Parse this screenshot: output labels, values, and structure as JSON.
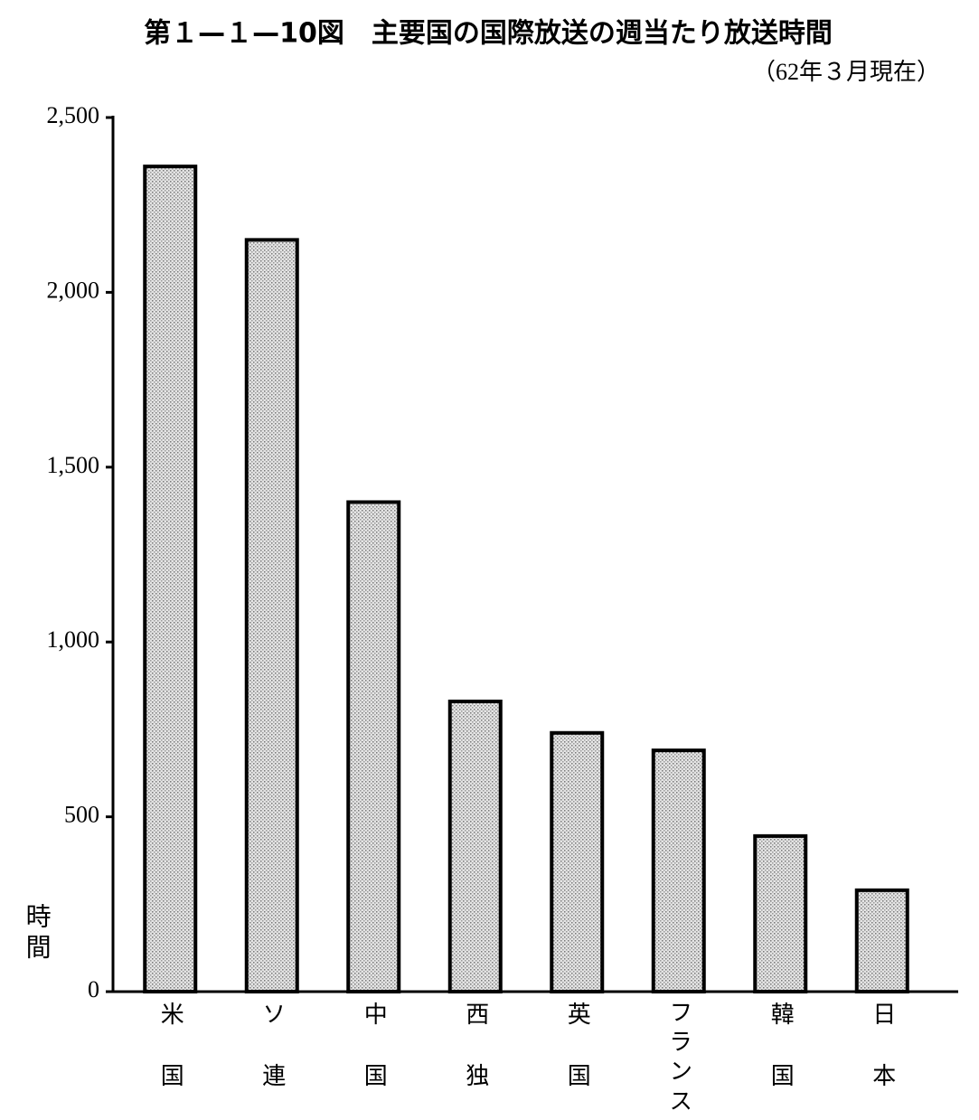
{
  "chart_data": {
    "type": "bar",
    "title": "第１—１—10図　主要国の国際放送の週当たり放送時間",
    "subtitle": "（62年３月現在）",
    "y_label": "時間",
    "categories": [
      "米国",
      "ソ連",
      "中国",
      "西独",
      "英国",
      "フランス",
      "韓国",
      "日本"
    ],
    "values": [
      2360,
      2150,
      1400,
      830,
      740,
      690,
      445,
      290
    ],
    "color": "#d0d0d0",
    "ylim": [
      0,
      2500
    ],
    "yticks": [
      0,
      500,
      {
        "value": 1000,
        "label": "1,000"
      },
      {
        "value": 1500,
        "label": "1,500"
      },
      {
        "value": 2000,
        "label": "2,000"
      },
      {
        "value": 2500,
        "label": "2,500"
      }
    ],
    "grid": false
  }
}
